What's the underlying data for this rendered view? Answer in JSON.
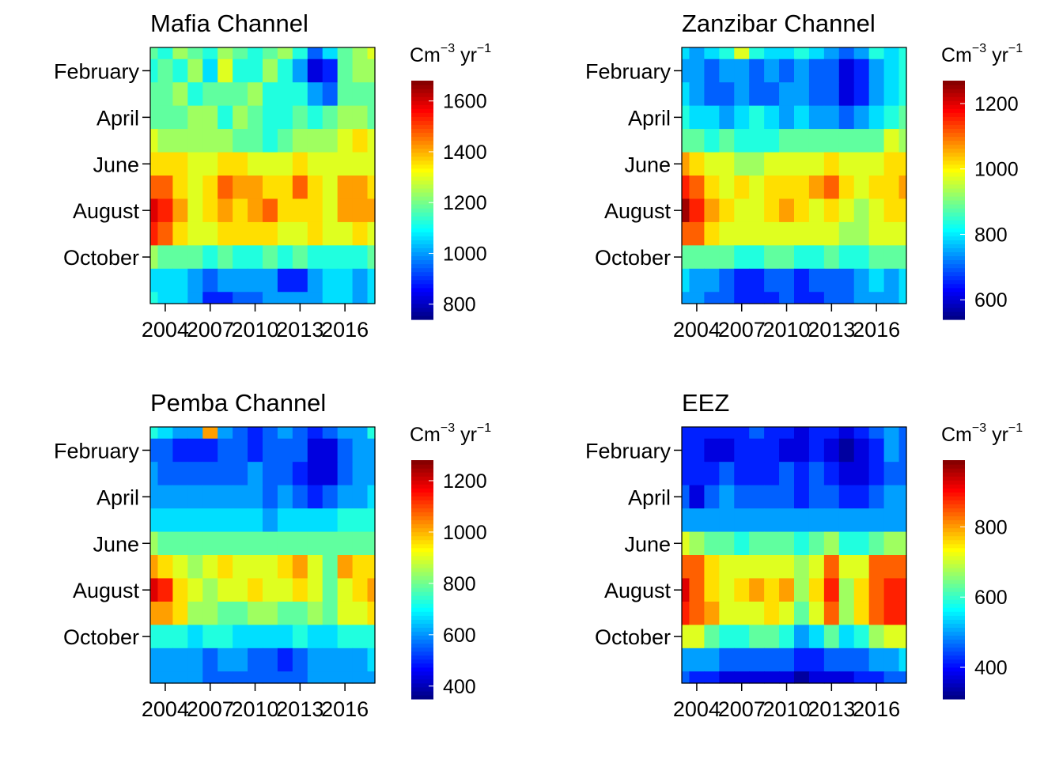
{
  "chart_data": [
    {
      "type": "heatmap",
      "title": "Mafia Channel",
      "legend_unit": "Cm",
      "legend_unit_exp1": "−3",
      "legend_unit_mid": " yr",
      "legend_unit_exp2": "−1",
      "x_ticks": [
        "2004",
        "2007",
        "2010",
        "2013",
        "2016"
      ],
      "y_ticks": [
        "February",
        "April",
        "June",
        "August",
        "October"
      ],
      "xlim": [
        2003,
        2018
      ],
      "ylim": [
        1,
        12
      ],
      "x": [
        2003,
        2004,
        2005,
        2006,
        2007,
        2008,
        2009,
        2010,
        2011,
        2012,
        2013,
        2014,
        2015,
        2016,
        2017,
        2018
      ],
      "y": [
        "Jan",
        "Feb",
        "Mar",
        "Apr",
        "May",
        "Jun",
        "Jul",
        "Aug",
        "Sep",
        "Oct",
        "Nov",
        "Dec"
      ],
      "scale_ticks": [
        "800",
        "1000",
        "1200",
        "1400",
        "1600"
      ],
      "scale_tick_values": [
        800,
        1000,
        1200,
        1400,
        1600
      ],
      "range": [
        740,
        1680
      ],
      "z": [
        [
          1180,
          1140,
          1250,
          1180,
          1150,
          1230,
          1160,
          1140,
          1200,
          1260,
          1120,
          950,
          1050,
          1200,
          1240,
          1280
        ],
        [
          1140,
          1160,
          1120,
          1240,
          1060,
          1280,
          1140,
          1120,
          1220,
          1100,
          1000,
          840,
          900,
          1180,
          1220,
          1240
        ],
        [
          1160,
          1180,
          1240,
          1150,
          1190,
          1180,
          1200,
          1220,
          1150,
          1100,
          1100,
          1000,
          960,
          1180,
          1180,
          1200
        ],
        [
          1180,
          1200,
          1190,
          1220,
          1230,
          1150,
          1220,
          1180,
          1120,
          1140,
          1180,
          1100,
          1180,
          1260,
          1220,
          1180
        ],
        [
          1280,
          1220,
          1230,
          1240,
          1250,
          1220,
          1200,
          1180,
          1140,
          1170,
          1210,
          1230,
          1260,
          1290,
          1360,
          1280
        ],
        [
          1380,
          1380,
          1360,
          1300,
          1320,
          1330,
          1340,
          1300,
          1280,
          1300,
          1350,
          1290,
          1300,
          1320,
          1300,
          1280
        ],
        [
          1500,
          1450,
          1380,
          1300,
          1380,
          1460,
          1400,
          1390,
          1360,
          1380,
          1480,
          1380,
          1320,
          1440,
          1420,
          1360
        ],
        [
          1600,
          1560,
          1420,
          1300,
          1370,
          1400,
          1380,
          1420,
          1460,
          1370,
          1380,
          1360,
          1300,
          1400,
          1440,
          1440
        ],
        [
          1520,
          1480,
          1380,
          1290,
          1320,
          1330,
          1340,
          1330,
          1340,
          1320,
          1300,
          1340,
          1300,
          1300,
          1340,
          1320
        ],
        [
          1220,
          1180,
          1200,
          1160,
          1140,
          1160,
          1150,
          1150,
          1160,
          1120,
          1160,
          1100,
          1100,
          1120,
          1140,
          1160
        ],
        [
          1080,
          1060,
          1040,
          1000,
          960,
          1000,
          980,
          1000,
          980,
          880,
          880,
          1000,
          1040,
          1040,
          1000,
          1060
        ],
        [
          1100,
          1060,
          1040,
          1020,
          900,
          900,
          920,
          940,
          1020,
          980,
          1000,
          1000,
          1080,
          1060,
          980,
          1040
        ]
      ]
    },
    {
      "type": "heatmap",
      "title": "Zanzibar Channel",
      "legend_unit": "Cm",
      "legend_unit_exp1": "−3",
      "legend_unit_mid": " yr",
      "legend_unit_exp2": "−1",
      "x_ticks": [
        "2004",
        "2007",
        "2010",
        "2013",
        "2016"
      ],
      "y_ticks": [
        "February",
        "April",
        "June",
        "August",
        "October"
      ],
      "xlim": [
        2003,
        2018
      ],
      "ylim": [
        1,
        12
      ],
      "x": [
        2003,
        2004,
        2005,
        2006,
        2007,
        2008,
        2009,
        2010,
        2011,
        2012,
        2013,
        2014,
        2015,
        2016,
        2017,
        2018
      ],
      "y": [
        "Jan",
        "Feb",
        "Mar",
        "Apr",
        "May",
        "Jun",
        "Jul",
        "Aug",
        "Sep",
        "Oct",
        "Nov",
        "Dec"
      ],
      "scale_ticks": [
        "600",
        "800",
        "1000",
        "1200"
      ],
      "scale_tick_values": [
        600,
        800,
        1000,
        1200
      ],
      "range": [
        540,
        1270
      ],
      "z": [
        [
          780,
          760,
          800,
          820,
          960,
          820,
          800,
          780,
          820,
          800,
          760,
          700,
          760,
          820,
          800,
          840
        ],
        [
          760,
          740,
          720,
          760,
          740,
          720,
          760,
          700,
          760,
          720,
          680,
          620,
          660,
          740,
          800,
          820
        ],
        [
          780,
          760,
          720,
          700,
          740,
          720,
          720,
          740,
          740,
          720,
          680,
          600,
          660,
          760,
          800,
          820
        ],
        [
          820,
          800,
          780,
          760,
          780,
          820,
          780,
          760,
          780,
          760,
          740,
          700,
          760,
          800,
          840,
          860
        ],
        [
          880,
          860,
          840,
          860,
          840,
          850,
          840,
          860,
          880,
          860,
          860,
          860,
          880,
          900,
          960,
          920
        ],
        [
          1060,
          1000,
          960,
          960,
          940,
          940,
          960,
          980,
          960,
          960,
          1020,
          980,
          960,
          980,
          1040,
          1020
        ],
        [
          1160,
          1100,
          1040,
          960,
          1000,
          960,
          1020,
          1040,
          1000,
          1060,
          1100,
          1020,
          960,
          1000,
          1040,
          1060
        ],
        [
          1240,
          1140,
          1060,
          1000,
          980,
          980,
          1000,
          1060,
          1000,
          960,
          1040,
          980,
          940,
          980,
          1000,
          1000
        ],
        [
          1100,
          1100,
          1000,
          960,
          960,
          960,
          980,
          960,
          960,
          960,
          960,
          940,
          940,
          960,
          960,
          960
        ],
        [
          900,
          880,
          880,
          860,
          840,
          840,
          860,
          860,
          840,
          840,
          860,
          840,
          840,
          860,
          860,
          880
        ],
        [
          780,
          760,
          740,
          720,
          660,
          660,
          680,
          700,
          660,
          680,
          700,
          720,
          760,
          780,
          760,
          780
        ],
        [
          760,
          740,
          700,
          680,
          640,
          660,
          640,
          700,
          640,
          660,
          700,
          720,
          760,
          760,
          760,
          780
        ]
      ]
    },
    {
      "type": "heatmap",
      "title": "Pemba Channel",
      "legend_unit": "Cm",
      "legend_unit_exp1": "−3",
      "legend_unit_mid": " yr",
      "legend_unit_exp2": "−1",
      "x_ticks": [
        "2004",
        "2007",
        "2010",
        "2013",
        "2016"
      ],
      "y_ticks": [
        "February",
        "April",
        "June",
        "August",
        "October"
      ],
      "xlim": [
        2003,
        2018
      ],
      "ylim": [
        1,
        12
      ],
      "x": [
        2003,
        2004,
        2005,
        2006,
        2007,
        2008,
        2009,
        2010,
        2011,
        2012,
        2013,
        2014,
        2015,
        2016,
        2017,
        2018
      ],
      "y": [
        "Jan",
        "Feb",
        "Mar",
        "Apr",
        "May",
        "Jun",
        "Jul",
        "Aug",
        "Sep",
        "Oct",
        "Nov",
        "Dec"
      ],
      "scale_ticks": [
        "400",
        "600",
        "800",
        "1000",
        "1200"
      ],
      "scale_tick_values": [
        400,
        600,
        800,
        1000,
        1200
      ],
      "range": [
        350,
        1280
      ],
      "z": [
        [
          720,
          660,
          620,
          620,
          1000,
          620,
          560,
          520,
          560,
          600,
          580,
          520,
          560,
          600,
          640,
          700
        ],
        [
          580,
          560,
          520,
          520,
          520,
          540,
          540,
          520,
          560,
          560,
          540,
          460,
          440,
          560,
          620,
          640
        ],
        [
          600,
          580,
          560,
          580,
          560,
          560,
          580,
          600,
          560,
          540,
          520,
          460,
          460,
          580,
          620,
          640
        ],
        [
          620,
          620,
          640,
          620,
          620,
          620,
          620,
          600,
          580,
          600,
          560,
          520,
          560,
          620,
          640,
          660
        ],
        [
          680,
          680,
          680,
          680,
          660,
          660,
          680,
          660,
          640,
          660,
          660,
          660,
          660,
          700,
          720,
          700
        ],
        [
          820,
          800,
          800,
          760,
          760,
          780,
          780,
          780,
          760,
          780,
          800,
          760,
          760,
          760,
          780,
          780
        ],
        [
          1000,
          940,
          880,
          860,
          900,
          940,
          920,
          920,
          900,
          960,
          1040,
          880,
          800,
          1000,
          980,
          960
        ],
        [
          1200,
          1120,
          960,
          880,
          860,
          880,
          880,
          940,
          920,
          880,
          940,
          880,
          800,
          920,
          980,
          1000
        ],
        [
          1040,
          1000,
          940,
          820,
          820,
          800,
          800,
          820,
          820,
          800,
          800,
          820,
          780,
          880,
          920,
          940
        ],
        [
          700,
          700,
          700,
          680,
          700,
          700,
          680,
          680,
          660,
          680,
          700,
          680,
          680,
          700,
          720,
          720
        ],
        [
          640,
          620,
          620,
          600,
          560,
          600,
          600,
          580,
          560,
          500,
          560,
          600,
          600,
          620,
          640,
          660
        ],
        [
          620,
          620,
          600,
          600,
          580,
          580,
          560,
          580,
          560,
          560,
          580,
          600,
          620,
          640,
          620,
          640
        ]
      ]
    },
    {
      "type": "heatmap",
      "title": "EEZ",
      "legend_unit": "Cm",
      "legend_unit_exp1": "−3",
      "legend_unit_mid": " yr",
      "legend_unit_exp2": "−1",
      "x_ticks": [
        "2004",
        "2007",
        "2010",
        "2013",
        "2016"
      ],
      "y_ticks": [
        "February",
        "April",
        "June",
        "August",
        "October"
      ],
      "xlim": [
        2003,
        2018
      ],
      "ylim": [
        1,
        12
      ],
      "x": [
        2003,
        2004,
        2005,
        2006,
        2007,
        2008,
        2009,
        2010,
        2011,
        2012,
        2013,
        2014,
        2015,
        2016,
        2017,
        2018
      ],
      "y": [
        "Jan",
        "Feb",
        "Mar",
        "Apr",
        "May",
        "Jun",
        "Jul",
        "Aug",
        "Sep",
        "Oct",
        "Nov",
        "Dec"
      ],
      "scale_ticks": [
        "400",
        "600",
        "800"
      ],
      "scale_tick_values": [
        400,
        600,
        800
      ],
      "range": [
        310,
        990
      ],
      "z": [
        [
          420,
          420,
          400,
          400,
          400,
          440,
          420,
          400,
          380,
          400,
          400,
          360,
          400,
          440,
          520,
          460
        ],
        [
          400,
          400,
          380,
          380,
          400,
          420,
          400,
          380,
          380,
          400,
          380,
          340,
          360,
          400,
          480,
          440
        ],
        [
          420,
          400,
          400,
          440,
          400,
          400,
          420,
          440,
          420,
          440,
          400,
          360,
          360,
          420,
          460,
          460
        ],
        [
          440,
          380,
          440,
          480,
          460,
          440,
          460,
          460,
          400,
          460,
          440,
          400,
          400,
          440,
          480,
          480
        ],
        [
          520,
          500,
          500,
          500,
          500,
          480,
          500,
          500,
          480,
          500,
          500,
          480,
          480,
          500,
          520,
          520
        ],
        [
          700,
          680,
          640,
          620,
          600,
          620,
          620,
          620,
          600,
          620,
          660,
          600,
          600,
          640,
          660,
          660
        ],
        [
          860,
          840,
          760,
          700,
          720,
          720,
          720,
          720,
          660,
          720,
          860,
          700,
          720,
          840,
          860,
          840
        ],
        [
          940,
          860,
          760,
          720,
          740,
          780,
          760,
          800,
          660,
          740,
          900,
          680,
          760,
          860,
          880,
          880
        ],
        [
          880,
          860,
          780,
          720,
          720,
          720,
          740,
          720,
          640,
          700,
          820,
          660,
          740,
          860,
          880,
          880
        ],
        [
          720,
          700,
          640,
          600,
          600,
          620,
          620,
          600,
          520,
          560,
          640,
          560,
          600,
          680,
          700,
          700
        ],
        [
          520,
          500,
          480,
          460,
          440,
          460,
          460,
          440,
          400,
          420,
          460,
          440,
          460,
          500,
          520,
          540
        ],
        [
          440,
          420,
          400,
          380,
          360,
          380,
          380,
          360,
          340,
          360,
          380,
          380,
          420,
          420,
          440,
          460
        ]
      ]
    }
  ]
}
